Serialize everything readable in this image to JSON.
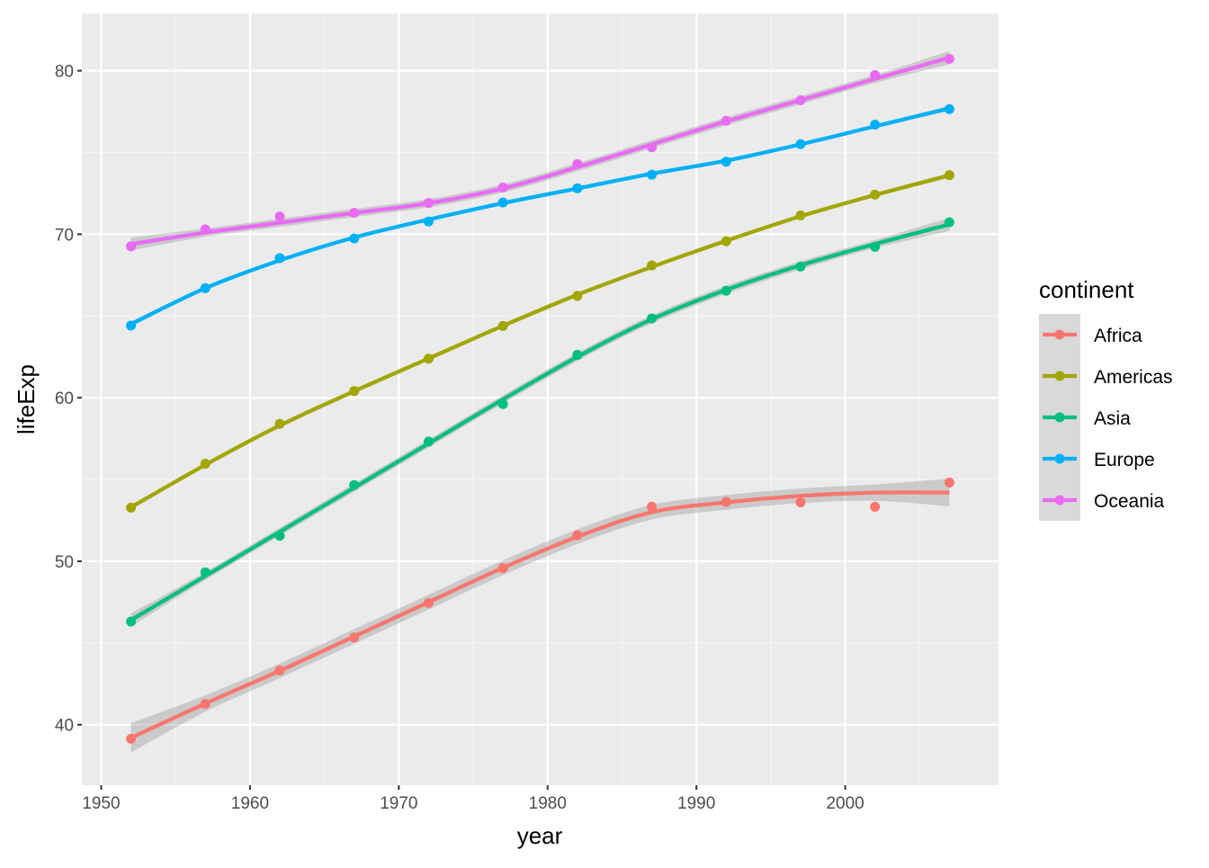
{
  "chart_data": {
    "type": "line",
    "title": "",
    "xlabel": "year",
    "ylabel": "lifeExp",
    "xlim": [
      1948.7,
      2010.3
    ],
    "ylim": [
      36.3,
      83.5
    ],
    "x_ticks": [
      1950,
      1960,
      1970,
      1980,
      1990,
      2000
    ],
    "y_ticks": [
      40,
      50,
      60,
      70,
      80
    ],
    "grid": true,
    "legend": {
      "title": "continent",
      "placement": "right"
    },
    "x": [
      1952,
      1957,
      1962,
      1967,
      1972,
      1977,
      1982,
      1987,
      1992,
      1997,
      2002,
      2007
    ],
    "series": [
      {
        "name": "Africa",
        "color": "#F8766D",
        "values": [
          39.14,
          41.27,
          43.32,
          45.33,
          47.45,
          49.58,
          51.59,
          53.34,
          53.63,
          53.6,
          53.33,
          54.81
        ],
        "smooth": [
          39.2,
          41.3,
          43.3,
          45.4,
          47.5,
          49.6,
          51.5,
          53.0,
          53.6,
          54.0,
          54.2,
          54.2
        ],
        "se": [
          0.9,
          0.5,
          0.45,
          0.45,
          0.45,
          0.45,
          0.45,
          0.45,
          0.45,
          0.45,
          0.5,
          0.85
        ]
      },
      {
        "name": "Americas",
        "color": "#A3A500",
        "values": [
          53.28,
          55.96,
          58.4,
          60.41,
          62.39,
          64.39,
          66.23,
          68.09,
          69.57,
          71.15,
          72.42,
          73.61
        ],
        "smooth": [
          53.3,
          55.9,
          58.3,
          60.4,
          62.4,
          64.4,
          66.3,
          68.0,
          69.6,
          71.1,
          72.4,
          73.6
        ],
        "se": [
          0.15,
          0.1,
          0.1,
          0.1,
          0.1,
          0.1,
          0.1,
          0.1,
          0.1,
          0.1,
          0.1,
          0.15
        ]
      },
      {
        "name": "Asia",
        "color": "#00BF7D",
        "values": [
          46.31,
          49.32,
          51.56,
          54.66,
          57.32,
          59.61,
          62.62,
          64.85,
          66.54,
          68.02,
          69.23,
          70.73
        ],
        "smooth": [
          46.4,
          49.1,
          51.8,
          54.5,
          57.2,
          59.9,
          62.5,
          64.8,
          66.6,
          68.1,
          69.4,
          70.6
        ],
        "se": [
          0.4,
          0.25,
          0.25,
          0.25,
          0.25,
          0.25,
          0.25,
          0.25,
          0.25,
          0.25,
          0.25,
          0.4
        ]
      },
      {
        "name": "Europe",
        "color": "#00B0F6",
        "values": [
          64.41,
          66.7,
          68.54,
          69.74,
          70.78,
          71.94,
          72.81,
          73.64,
          74.44,
          75.51,
          76.7,
          77.65
        ],
        "smooth": [
          64.5,
          66.7,
          68.4,
          69.8,
          70.9,
          71.9,
          72.8,
          73.7,
          74.5,
          75.5,
          76.6,
          77.7
        ],
        "se": [
          0.15,
          0.1,
          0.1,
          0.1,
          0.1,
          0.1,
          0.1,
          0.1,
          0.1,
          0.1,
          0.1,
          0.15
        ]
      },
      {
        "name": "Oceania",
        "color": "#E76BF3",
        "values": [
          69.26,
          70.3,
          71.09,
          71.31,
          71.91,
          72.86,
          74.29,
          75.32,
          76.94,
          78.19,
          79.74,
          80.72
        ],
        "smooth": [
          69.4,
          70.1,
          70.7,
          71.3,
          71.9,
          72.8,
          74.1,
          75.5,
          76.9,
          78.2,
          79.5,
          80.8
        ],
        "se": [
          0.4,
          0.25,
          0.25,
          0.25,
          0.25,
          0.25,
          0.25,
          0.25,
          0.25,
          0.25,
          0.25,
          0.4
        ]
      }
    ]
  }
}
